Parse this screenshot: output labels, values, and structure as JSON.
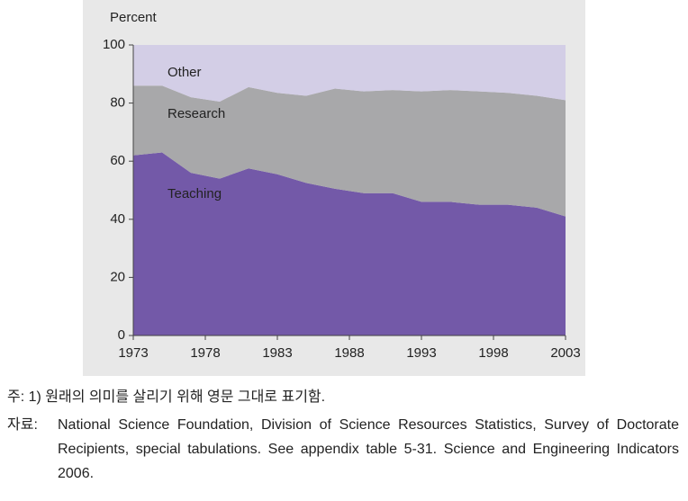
{
  "chart_data": {
    "type": "stacked_area",
    "y_label": "Percent",
    "x": [
      1973,
      1975,
      1977,
      1979,
      1981,
      1983,
      1985,
      1987,
      1989,
      1991,
      1993,
      1995,
      1997,
      1999,
      2001,
      2003
    ],
    "series": [
      {
        "name": "Teaching",
        "color": "#7359a8",
        "values": [
          62,
          63,
          56,
          54,
          57.5,
          55.5,
          52.5,
          50.5,
          49,
          49,
          46,
          46,
          45,
          45,
          44,
          41
        ]
      },
      {
        "name": "Research",
        "color": "#a8a8aa",
        "values": [
          24,
          23,
          26,
          26.5,
          28,
          28,
          30,
          34.5,
          35,
          35.5,
          38,
          38.5,
          39,
          38.5,
          38.5,
          40
        ]
      },
      {
        "name": "Other",
        "color": "#d3cee6",
        "values": [
          14,
          14,
          18,
          19.5,
          14.5,
          16.5,
          17.5,
          15,
          16,
          15.5,
          16,
          15.5,
          16,
          16.5,
          17.5,
          19
        ]
      }
    ],
    "xlim": [
      1973,
      2003
    ],
    "xticks": [
      1973,
      1978,
      1983,
      1988,
      1993,
      1998,
      2003
    ],
    "ylim": [
      0,
      100
    ],
    "yticks": [
      0,
      20,
      40,
      60,
      80,
      100
    ]
  },
  "notes": {
    "note": "주: 1) 원래의 의미를 살리기 위해 영문 그대로 표기함.",
    "source_label": "자료:",
    "source_text": "National Science Foundation, Division of Science Resources Statistics, Survey of Doctorate Recipients, special tabulations. See appendix table 5-31. Science and Engineering Indicators 2006."
  }
}
